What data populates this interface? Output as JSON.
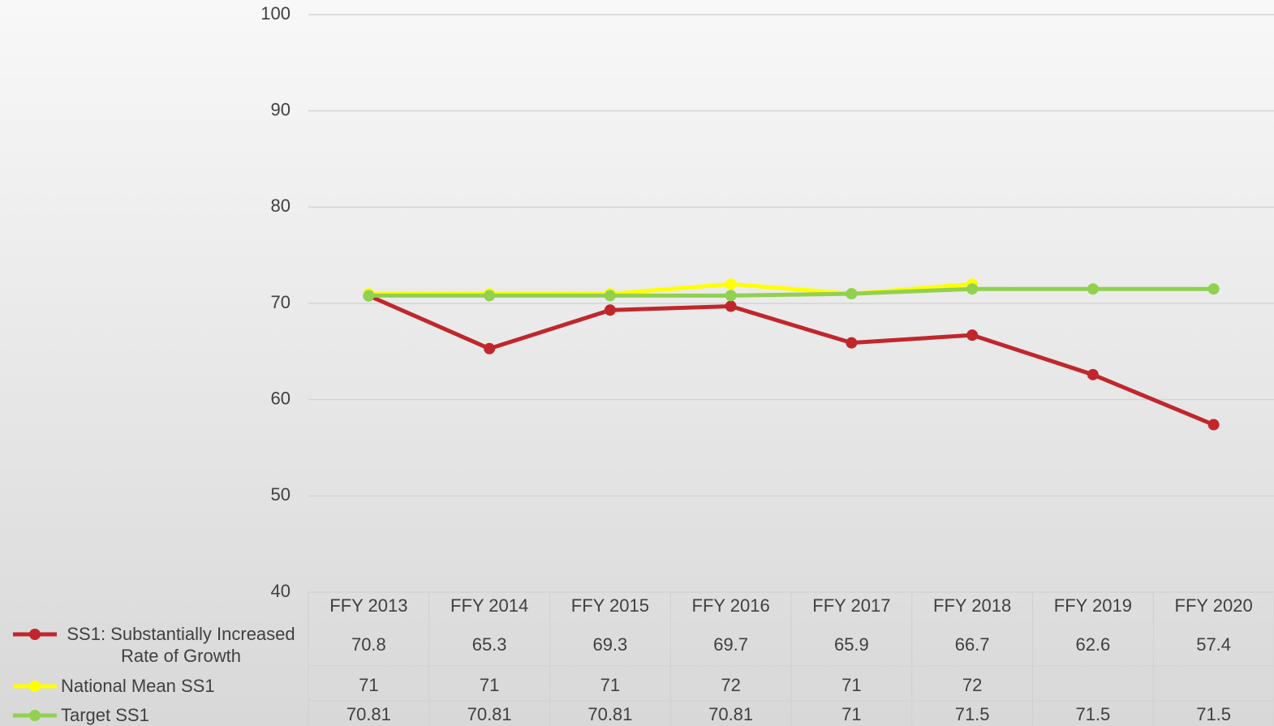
{
  "chart_data": {
    "type": "line",
    "categories": [
      "FFY 2013",
      "FFY 2014",
      "FFY 2015",
      "FFY 2016",
      "FFY 2017",
      "FFY 2018",
      "FFY 2019",
      "FFY 2020"
    ],
    "series": [
      {
        "name": "SS1:  Substantially Increased Rate of Growth",
        "color": "#c0272d",
        "values": [
          70.8,
          65.3,
          69.3,
          69.7,
          65.9,
          66.7,
          62.6,
          57.4
        ]
      },
      {
        "name": "National Mean SS1",
        "color": "#ffff00",
        "values": [
          71,
          71,
          71,
          72,
          71,
          72,
          null,
          null
        ]
      },
      {
        "name": "Target SS1",
        "color": "#92d050",
        "values": [
          70.81,
          70.81,
          70.81,
          70.81,
          71,
          71.5,
          71.5,
          71.5
        ]
      }
    ],
    "ylim": [
      40,
      100
    ],
    "yticks": [
      40,
      50,
      60,
      70,
      80,
      90,
      100
    ],
    "grid": true,
    "data_table": true
  }
}
